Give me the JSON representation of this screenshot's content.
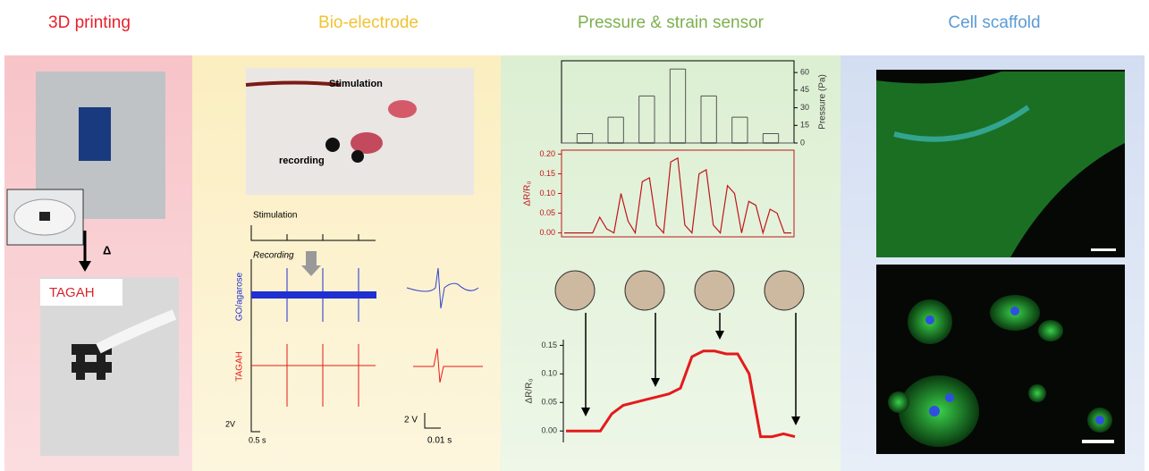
{
  "panels": [
    {
      "title": "3D printing",
      "color": "#e8202a",
      "delta": "Δ",
      "material": "TAGAH"
    },
    {
      "title": "Bio-electrode",
      "color": "#f2c230",
      "photo_stimulation": "Stimulation",
      "photo_recording": "recording",
      "trace_stimulation": "Stimulation",
      "trace_recording": "Recording",
      "trace_go": "GO/agarose",
      "trace_tagah": "TAGAH",
      "scale_v1": "2V",
      "scale_t1": "0.5 s",
      "scale_v2": "2 V",
      "scale_t2": "0.01 s"
    },
    {
      "title": "Pressure & strain sensor",
      "color": "#7db04f"
    },
    {
      "title": "Cell scaffold",
      "color": "#5b9bd5"
    }
  ],
  "charts": [
    {
      "type": "step",
      "y_label": "Pressure (Pa)",
      "color": "#555555",
      "ylim": [
        0,
        70
      ],
      "yticks": [
        0,
        15,
        30,
        45,
        60
      ],
      "values": [
        0,
        8,
        0,
        22,
        0,
        40,
        0,
        63,
        0,
        40,
        0,
        22,
        0,
        8,
        0
      ]
    },
    {
      "type": "line",
      "y_label": "ΔR/R₀",
      "color": "#c0141c",
      "ylim": [
        -0.01,
        0.21
      ],
      "yticks": [
        {
          "value": 0,
          "label": "0.00"
        },
        {
          "value": 0.05,
          "label": "0.05"
        },
        {
          "value": 0.1,
          "label": "0.10"
        },
        {
          "value": 0.15,
          "label": "0.15"
        },
        {
          "value": 0.2,
          "label": "0.20"
        }
      ],
      "values": [
        0,
        0,
        0,
        0,
        0,
        0.04,
        0.01,
        0,
        0.1,
        0.03,
        0,
        0.13,
        0.14,
        0.02,
        0,
        0.18,
        0.19,
        0.02,
        0,
        0.15,
        0.16,
        0.02,
        0,
        0.12,
        0.1,
        0,
        0.08,
        0.07,
        0,
        0.06,
        0.05,
        0,
        0
      ]
    },
    {
      "type": "line",
      "y_label": "ΔR/R₀",
      "color": "#e41a1c",
      "ylim": [
        -0.02,
        0.16
      ],
      "yticks": [
        {
          "value": 0,
          "label": "0.00"
        },
        {
          "value": 0.05,
          "label": "0.05"
        },
        {
          "value": 0.1,
          "label": "0.10"
        },
        {
          "value": 0.15,
          "label": "0.15"
        }
      ],
      "values": [
        0,
        0,
        0,
        0,
        0.03,
        0.045,
        0.05,
        0.055,
        0.06,
        0.065,
        0.075,
        0.13,
        0.14,
        0.14,
        0.135,
        0.135,
        0.1,
        -0.01,
        -0.01,
        -0.005,
        -0.01
      ]
    }
  ]
}
